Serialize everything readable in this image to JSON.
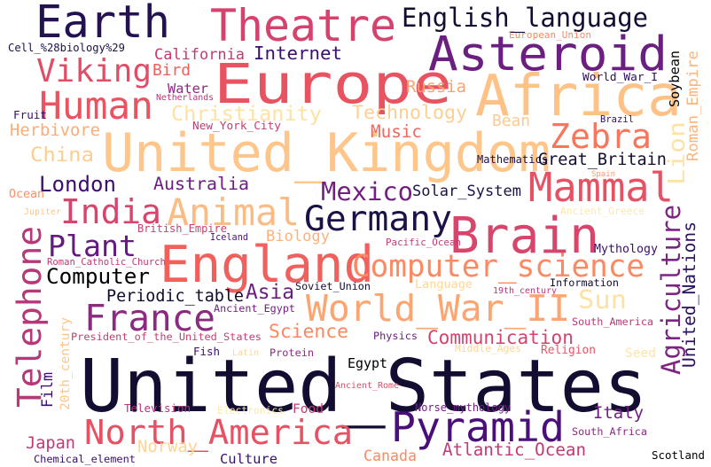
{
  "words": [
    {
      "text": "Earth",
      "color": "#231151"
    },
    {
      "text": "Theatre",
      "color": "#d3436e"
    },
    {
      "text": "English_language",
      "color": "#120d31"
    },
    {
      "text": "Asteroid",
      "color": "#6b1f80"
    },
    {
      "text": "Europe",
      "color": "#e85362"
    },
    {
      "text": "Africa",
      "color": "#fec287"
    },
    {
      "text": "Viking",
      "color": "#e14d66"
    },
    {
      "text": "Internet",
      "color": "#3b0f70"
    },
    {
      "text": "California",
      "color": "#c03a76"
    },
    {
      "text": "Cell_%28biology%29",
      "color": "#1d1147"
    },
    {
      "text": "Bird",
      "color": "#f0605d"
    },
    {
      "text": "Human",
      "color": "#e95462"
    },
    {
      "text": "Water",
      "color": "#8c2981"
    },
    {
      "text": "Netherlands",
      "color": "#b73779"
    },
    {
      "text": "Christianity",
      "color": "#fde2a3"
    },
    {
      "text": "Russia",
      "color": "#fea16e"
    },
    {
      "text": "Technology",
      "color": "#fecf92"
    },
    {
      "text": "European_Union",
      "color": "#fb8861"
    },
    {
      "text": "World_War_I",
      "color": "#2c115f"
    },
    {
      "text": "Soybean",
      "color": "#000004"
    },
    {
      "text": "Roman_Empire",
      "color": "#feb47b"
    },
    {
      "text": "Fruit",
      "color": "#3b0f70"
    },
    {
      "text": "Herbivore",
      "color": "#fcac78"
    },
    {
      "text": "New_York_City",
      "color": "#c53c74"
    },
    {
      "text": "United_Kingdom",
      "color": "#fec68a"
    },
    {
      "text": "Music",
      "color": "#f4685c"
    },
    {
      "text": "Bean",
      "color": "#fec98d"
    },
    {
      "text": "Brazil",
      "color": "#2c115f"
    },
    {
      "text": "Zebra",
      "color": "#f8765c"
    },
    {
      "text": "Lion",
      "color": "#fde4a6"
    },
    {
      "text": "China",
      "color": "#fecd90"
    },
    {
      "text": "Mathematics",
      "color": "#1d1147"
    },
    {
      "text": "Great_Britain",
      "color": "#120d31"
    },
    {
      "text": "Spain",
      "color": "#fd9a6a"
    },
    {
      "text": "London",
      "color": "#3b0f70"
    },
    {
      "text": "Australia",
      "color": "#6b1f80"
    },
    {
      "text": "Mexico",
      "color": "#721f81"
    },
    {
      "text": "Solar_System",
      "color": "#1d1147"
    },
    {
      "text": "Mammal",
      "color": "#e65164"
    },
    {
      "text": "Ocean",
      "color": "#fc9065"
    },
    {
      "text": "India",
      "color": "#d8456c"
    },
    {
      "text": "Animal",
      "color": "#fdbb84"
    },
    {
      "text": "Germany",
      "color": "#1d1147"
    },
    {
      "text": "Jupiter",
      "color": "#fec68a"
    },
    {
      "text": "Ancient_Greece",
      "color": "#fde8ab"
    },
    {
      "text": "British_Empire",
      "color": "#c83e73"
    },
    {
      "text": "Brain",
      "color": "#d8456c"
    },
    {
      "text": "Telephone",
      "color": "#b73779"
    },
    {
      "text": "Plant",
      "color": "#641a80"
    },
    {
      "text": "Iceland",
      "color": "#4a1079"
    },
    {
      "text": "Biology",
      "color": "#feb27a"
    },
    {
      "text": "Agriculture",
      "color": "#7e2482"
    },
    {
      "text": "United_Nations",
      "color": "#2c115f"
    },
    {
      "text": "Roman_Catholic_Church",
      "color": "#c03a76"
    },
    {
      "text": "England",
      "color": "#f1605d"
    },
    {
      "text": "Pacific_Ocean",
      "color": "#c53c74"
    },
    {
      "text": "Mythology",
      "color": "#3b0f70"
    },
    {
      "text": "Computer",
      "color": "#000004"
    },
    {
      "text": "Computer_science",
      "color": "#fc8961"
    },
    {
      "text": "Periodic_table",
      "color": "#0f0b2c"
    },
    {
      "text": "Soviet_Union",
      "color": "#120d31"
    },
    {
      "text": "Language",
      "color": "#fed799"
    },
    {
      "text": "19th_century",
      "color": "#b63679"
    },
    {
      "text": "Information",
      "color": "#120d31"
    },
    {
      "text": "Asia",
      "color": "#6b1f80"
    },
    {
      "text": "France",
      "color": "#8c2981"
    },
    {
      "text": "World_War_II",
      "color": "#fca571"
    },
    {
      "text": "Sun",
      "color": "#fde2a3"
    },
    {
      "text": "Ancient_Egypt",
      "color": "#721f81"
    },
    {
      "text": "President_of_the_United_States",
      "color": "#c53c74"
    },
    {
      "text": "20th_century",
      "color": "#fec68a"
    },
    {
      "text": "Science",
      "color": "#fb8861"
    },
    {
      "text": "Communication",
      "color": "#d3436e"
    },
    {
      "text": "South_America",
      "color": "#b73779"
    },
    {
      "text": "Physics",
      "color": "#6b1f80"
    },
    {
      "text": "Middle_Ages",
      "color": "#fdd597"
    },
    {
      "text": "Religion",
      "color": "#e95462"
    },
    {
      "text": "Seed",
      "color": "#fde4a6"
    },
    {
      "text": "Fish",
      "color": "#3b0f70"
    },
    {
      "text": "Latin",
      "color": "#fdd597"
    },
    {
      "text": "Protein",
      "color": "#8c2981"
    },
    {
      "text": "Egypt",
      "color": "#000004"
    },
    {
      "text": "United_States",
      "color": "#120d31"
    },
    {
      "text": "Film",
      "color": "#3b0f70"
    },
    {
      "text": "Ancient_Rome",
      "color": "#e14d66"
    },
    {
      "text": "Television",
      "color": "#b63679"
    },
    {
      "text": "Electronics",
      "color": "#fde8ab"
    },
    {
      "text": "Food",
      "color": "#c53c74"
    },
    {
      "text": "Norse_mythology",
      "color": "#721f81"
    },
    {
      "text": "Pyramid",
      "color": "#4a1079"
    },
    {
      "text": "Italy",
      "color": "#721f81"
    },
    {
      "text": "North_America",
      "color": "#e65164"
    },
    {
      "text": "South_Africa",
      "color": "#8c2981"
    },
    {
      "text": "Japan",
      "color": "#c03a76"
    },
    {
      "text": "Norway",
      "color": "#fdd597"
    },
    {
      "text": "Culture",
      "color": "#3b0f70"
    },
    {
      "text": "Canada",
      "color": "#fc8961"
    },
    {
      "text": "Atlantic_Ocean",
      "color": "#c03a76"
    },
    {
      "text": "Chemical_element",
      "color": "#3b0f70"
    },
    {
      "text": "Scotland",
      "color": "#000004"
    }
  ]
}
